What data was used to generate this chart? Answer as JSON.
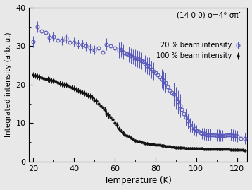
{
  "title": "(14 0 0) φ=4° σπ’",
  "xlabel": "Temperature (K)",
  "ylabel": "Integrated intensity (arb. u.)",
  "xlim": [
    18,
    125
  ],
  "ylim": [
    0,
    40
  ],
  "yticks": [
    0,
    10,
    20,
    30,
    40
  ],
  "xticks": [
    20,
    40,
    60,
    80,
    100,
    120
  ],
  "legend_20": "20 % beam intensity",
  "legend_100": "100 % beam intensity",
  "color_20": "#5555bb",
  "color_100": "#111111",
  "bg_color": "#e8e8e8",
  "blue_data": {
    "T": [
      20,
      22,
      24,
      26,
      28,
      30,
      32,
      34,
      36,
      38,
      40,
      42,
      44,
      46,
      48,
      50,
      52,
      54,
      56,
      58,
      60,
      62,
      63,
      64,
      65,
      66,
      67,
      68,
      69,
      70,
      71,
      72,
      73,
      74,
      75,
      76,
      77,
      78,
      79,
      80,
      81,
      82,
      83,
      84,
      85,
      86,
      87,
      88,
      89,
      90,
      91,
      92,
      93,
      94,
      95,
      96,
      97,
      98,
      99,
      100,
      101,
      102,
      103,
      104,
      105,
      106,
      107,
      108,
      109,
      110,
      111,
      112,
      113,
      114,
      115,
      116,
      117,
      118,
      119,
      120,
      122,
      124
    ],
    "I": [
      31.2,
      35.0,
      34.0,
      33.5,
      32.2,
      32.5,
      31.5,
      31.5,
      32.0,
      31.0,
      31.0,
      30.5,
      30.5,
      30.0,
      29.5,
      29.0,
      29.5,
      28.5,
      30.5,
      30.0,
      29.5,
      29.0,
      29.2,
      28.5,
      28.3,
      28.0,
      27.8,
      27.5,
      27.2,
      27.0,
      26.8,
      26.5,
      26.2,
      26.0,
      25.5,
      25.0,
      24.8,
      24.0,
      23.5,
      23.0,
      22.5,
      22.0,
      21.5,
      21.0,
      20.5,
      19.5,
      18.5,
      18.0,
      17.5,
      16.5,
      15.5,
      14.5,
      13.5,
      12.5,
      11.5,
      10.5,
      9.5,
      9.0,
      8.5,
      8.0,
      7.8,
      7.5,
      7.3,
      7.2,
      7.0,
      7.0,
      7.0,
      7.0,
      7.0,
      6.8,
      6.8,
      6.7,
      6.7,
      6.8,
      6.9,
      7.0,
      7.0,
      6.8,
      6.7,
      6.5,
      6.0,
      6.0
    ],
    "err": [
      1.5,
      1.5,
      1.2,
      1.2,
      1.2,
      1.2,
      1.2,
      1.2,
      1.2,
      1.2,
      1.2,
      1.2,
      1.2,
      1.2,
      1.2,
      1.2,
      1.2,
      1.5,
      1.5,
      1.5,
      1.8,
      2.0,
      2.0,
      2.0,
      2.0,
      2.0,
      2.0,
      2.0,
      2.0,
      2.2,
      2.2,
      2.2,
      2.2,
      2.2,
      2.2,
      2.2,
      2.3,
      2.3,
      2.3,
      2.5,
      2.5,
      2.5,
      2.5,
      2.5,
      2.5,
      2.5,
      2.8,
      3.0,
      3.0,
      3.0,
      3.0,
      3.0,
      2.8,
      2.5,
      2.2,
      2.0,
      1.8,
      1.5,
      1.5,
      1.5,
      1.5,
      1.5,
      1.5,
      1.5,
      1.5,
      1.5,
      1.5,
      1.5,
      1.5,
      1.5,
      1.5,
      1.5,
      1.5,
      1.5,
      1.5,
      1.5,
      1.5,
      1.5,
      1.5,
      1.5,
      1.5,
      1.5
    ]
  },
  "black_data": {
    "T": [
      20,
      21,
      22,
      23,
      24,
      25,
      26,
      27,
      28,
      29,
      30,
      31,
      32,
      33,
      34,
      35,
      36,
      37,
      38,
      39,
      40,
      41,
      42,
      43,
      44,
      45,
      46,
      47,
      48,
      49,
      50,
      51,
      52,
      53,
      54,
      55,
      56,
      57,
      58,
      59,
      60,
      61,
      62,
      63,
      64,
      65,
      66,
      67,
      68,
      69,
      70,
      71,
      72,
      73,
      74,
      75,
      76,
      77,
      78,
      79,
      80,
      81,
      82,
      83,
      84,
      85,
      86,
      87,
      88,
      89,
      90,
      91,
      92,
      93,
      94,
      95,
      96,
      97,
      98,
      99,
      100,
      101,
      102,
      103,
      104,
      105,
      106,
      107,
      108,
      109,
      110,
      111,
      112,
      113,
      114,
      115,
      116,
      117,
      118,
      119,
      120,
      121,
      122,
      123,
      124
    ],
    "I": [
      22.5,
      22.4,
      22.2,
      22.0,
      21.8,
      21.6,
      21.5,
      21.4,
      21.3,
      21.1,
      21.0,
      20.8,
      20.5,
      20.3,
      20.2,
      20.0,
      20.0,
      19.8,
      19.5,
      19.3,
      19.0,
      18.8,
      18.5,
      18.2,
      18.0,
      17.8,
      17.5,
      17.2,
      17.0,
      16.7,
      16.0,
      15.7,
      15.0,
      14.5,
      14.0,
      13.5,
      12.5,
      12.0,
      11.5,
      11.0,
      10.0,
      9.5,
      8.5,
      8.0,
      7.5,
      7.0,
      6.8,
      6.5,
      6.2,
      5.8,
      5.5,
      5.3,
      5.2,
      5.0,
      4.9,
      4.8,
      4.7,
      4.6,
      4.5,
      4.5,
      4.4,
      4.3,
      4.3,
      4.2,
      4.1,
      4.0,
      3.9,
      3.9,
      3.8,
      3.8,
      3.7,
      3.7,
      3.6,
      3.6,
      3.6,
      3.5,
      3.5,
      3.5,
      3.5,
      3.4,
      3.4,
      3.4,
      3.4,
      3.4,
      3.3,
      3.3,
      3.3,
      3.3,
      3.3,
      3.3,
      3.3,
      3.3,
      3.2,
      3.2,
      3.2,
      3.2,
      3.2,
      3.1,
      3.1,
      3.1,
      3.1,
      3.0,
      3.0,
      3.0,
      2.9
    ],
    "err": [
      0.7,
      0.7,
      0.7,
      0.7,
      0.7,
      0.7,
      0.7,
      0.7,
      0.7,
      0.7,
      0.7,
      0.7,
      0.7,
      0.7,
      0.7,
      0.7,
      0.7,
      0.7,
      0.7,
      0.7,
      0.7,
      0.7,
      0.7,
      0.7,
      0.7,
      0.7,
      0.7,
      0.7,
      0.7,
      0.7,
      0.7,
      0.7,
      0.7,
      0.7,
      0.7,
      0.7,
      0.8,
      0.8,
      0.8,
      0.8,
      0.8,
      0.7,
      0.7,
      0.6,
      0.6,
      0.5,
      0.5,
      0.4,
      0.4,
      0.4,
      0.4,
      0.3,
      0.3,
      0.3,
      0.3,
      0.3,
      0.3,
      0.3,
      0.3,
      0.3,
      0.3,
      0.3,
      0.3,
      0.3,
      0.3,
      0.3,
      0.3,
      0.3,
      0.3,
      0.3,
      0.3,
      0.3,
      0.3,
      0.3,
      0.3,
      0.3,
      0.3,
      0.3,
      0.3,
      0.3,
      0.3,
      0.3,
      0.3,
      0.3,
      0.3,
      0.3,
      0.3,
      0.3,
      0.3,
      0.3,
      0.3,
      0.3,
      0.3,
      0.3,
      0.3,
      0.3,
      0.3,
      0.3,
      0.3,
      0.3,
      0.3,
      0.3,
      0.3,
      0.3,
      0.3
    ]
  }
}
